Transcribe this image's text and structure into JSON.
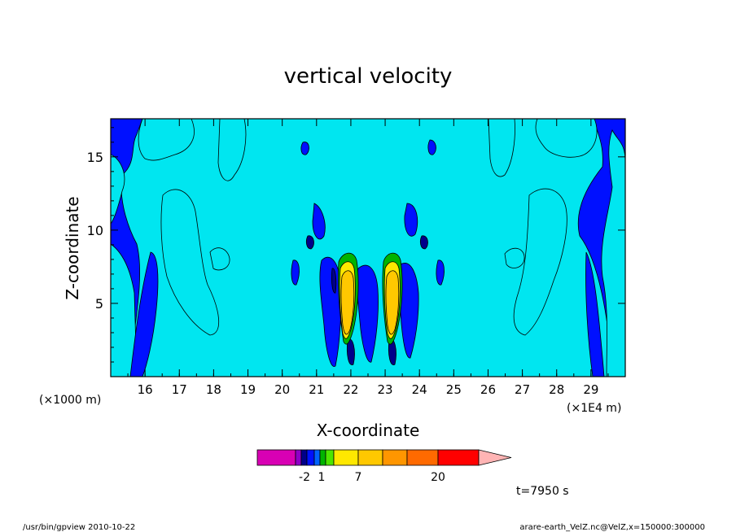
{
  "chart_data": {
    "type": "contour",
    "title": "vertical velocity",
    "xlabel": "X-coordinate",
    "ylabel": "Z-coordinate",
    "x_unit_left": "(×1000 m)",
    "x_unit_right": "(×1E4 m)",
    "xlim": [
      15.0,
      30.0
    ],
    "ylim": [
      0,
      17.6
    ],
    "x_ticks": [
      "16",
      "17",
      "18",
      "19",
      "20",
      "21",
      "22",
      "23",
      "24",
      "25",
      "26",
      "27",
      "28",
      "29"
    ],
    "y_ticks": [
      "5",
      "10",
      "15"
    ],
    "y_tick_values": [
      5,
      10,
      15
    ],
    "colorbar": {
      "levels_colors": [
        "#d800b4",
        "#8e00c8",
        "#00008a",
        "#0010ff",
        "#0062ff",
        "#00b400",
        "#4ee600",
        "#ffe800",
        "#ffc800",
        "#ff9600",
        "#ff6a00",
        "#ff0000",
        "#ff7070"
      ],
      "extend_color": "#ffb4b4",
      "tick_labels": [
        "-2",
        "1",
        "7",
        "20"
      ]
    },
    "fill_colors": {
      "background_positive": "#00e6f0",
      "negative": "#0010ff",
      "strong_negative": "#00008a",
      "weak_updraft": "#00b400",
      "mid_updraft": "#ffe800",
      "core_updraft": "#ffc800"
    },
    "time_label": "t=7950 s"
  },
  "footer": {
    "left": "/usr/bin/gpview  2010-10-22",
    "right": "arare-earth_VelZ.nc@VelZ,x=150000:300000"
  }
}
